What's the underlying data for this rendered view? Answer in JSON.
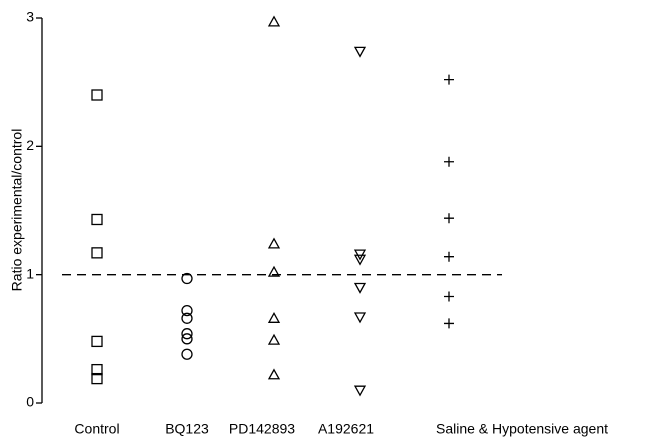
{
  "chart_data": {
    "type": "strip",
    "y_label": "Ratio experimental/control",
    "categories": [
      "Control",
      "BQ123",
      "PD142893",
      "A192621",
      "Saline & Hypotensive agent"
    ],
    "values": [
      [
        2.4,
        1.43,
        1.17,
        0.48,
        0.26,
        0.19
      ],
      [
        0.97,
        0.72,
        0.66,
        0.54,
        0.5,
        0.38
      ],
      [
        2.97,
        1.24,
        1.02,
        0.66,
        0.49,
        0.22
      ],
      [
        2.74,
        1.16,
        1.12,
        0.9,
        0.67,
        0.1
      ],
      [
        2.52,
        1.88,
        1.44,
        1.14,
        0.83,
        0.62
      ]
    ],
    "markers": [
      "square",
      "circle",
      "triangle-up",
      "triangle-down",
      "plus"
    ],
    "color": "#000000",
    "reference_line": 1,
    "ylim": [
      0,
      3
    ],
    "yticks": [
      0,
      1,
      2,
      3
    ]
  }
}
